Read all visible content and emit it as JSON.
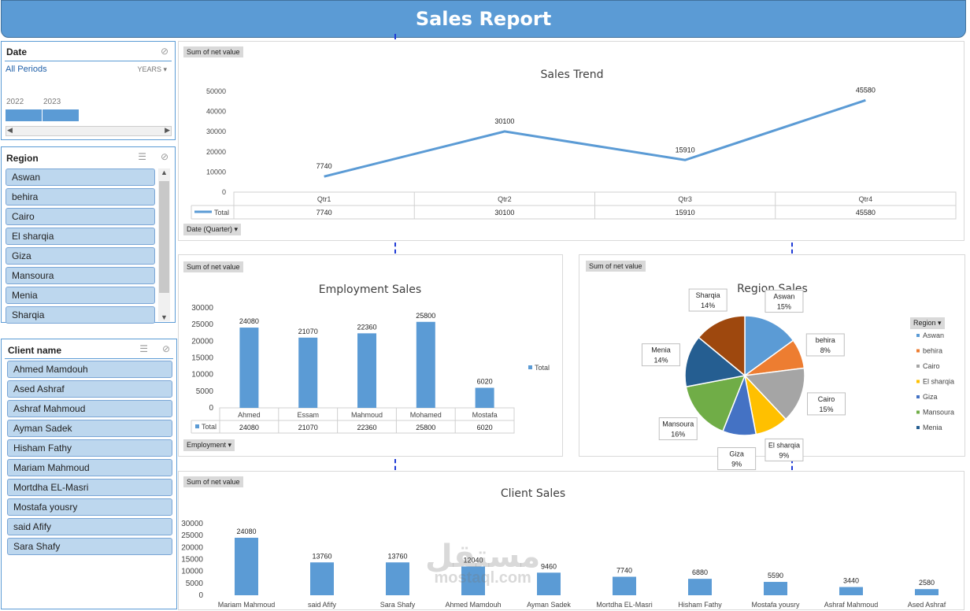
{
  "header": {
    "title": "Sales Report"
  },
  "date_slicer": {
    "title": "Date",
    "period_label": "All Periods",
    "level_label": "YEARS",
    "years": [
      "2022",
      "2023"
    ]
  },
  "region_slicer": {
    "title": "Region",
    "items": [
      "Aswan",
      "behira",
      "Cairo",
      "El sharqia",
      "Giza",
      "Mansoura",
      "Menia",
      "Sharqia"
    ]
  },
  "client_slicer": {
    "title": "Client name",
    "items": [
      "Ahmed Mamdouh",
      "Ased Ashraf",
      "Ashraf Mahmoud",
      "Ayman Sadek",
      "Hisham Fathy",
      "Mariam Mahmoud",
      "Mortdha EL-Masri",
      "Mostafa yousry",
      "said Afify",
      "Sara Shafy"
    ]
  },
  "field_tag": "Sum of net value",
  "trend": {
    "filter_label": "Date (Quarter)"
  },
  "employment": {
    "filter_label": "Employment"
  },
  "region_chart": {
    "filter_label": "Region"
  },
  "watermark": {
    "ar": "مستقل",
    "latin": "mostaql.com"
  },
  "colors": {
    "accent": "#5b9bd5",
    "slicer_item": "#bdd7ee"
  },
  "chart_data": [
    {
      "type": "line",
      "title": "Sales Trend",
      "categories": [
        "Qtr1",
        "Qtr2",
        "Qtr3",
        "Qtr4"
      ],
      "series": [
        {
          "name": "Total",
          "values": [
            7740,
            30100,
            15910,
            45580
          ]
        }
      ],
      "yticks": [
        0,
        10000,
        20000,
        30000,
        40000,
        50000
      ],
      "ylim": [
        0,
        50000
      ],
      "table": true
    },
    {
      "type": "bar",
      "title": "Employment Sales",
      "categories": [
        "Ahmed",
        "Essam",
        "Mahmoud",
        "Mohamed",
        "Mostafa"
      ],
      "series": [
        {
          "name": "Total",
          "values": [
            24080,
            21070,
            22360,
            25800,
            6020
          ]
        }
      ],
      "yticks": [
        0,
        5000,
        10000,
        15000,
        20000,
        25000,
        30000
      ],
      "ylim": [
        0,
        30000
      ],
      "legend": "right",
      "table": true
    },
    {
      "type": "pie",
      "title": "Region Sales",
      "categories": [
        "Aswan",
        "behira",
        "Cairo",
        "El sharqia",
        "Giza",
        "Mansoura",
        "Menia",
        "Sharqia"
      ],
      "values": [
        15,
        8,
        15,
        9,
        9,
        16,
        14,
        14
      ],
      "labels": [
        "15%",
        "8%",
        "15%",
        "9%",
        "9%",
        "16%",
        "14%",
        "14%"
      ],
      "colors": [
        "#5b9bd5",
        "#ed7d31",
        "#a5a5a5",
        "#ffc000",
        "#4472c4",
        "#70ad47",
        "#255e91",
        "#9e480e"
      ],
      "legend": "right",
      "legend_items": [
        "Aswan",
        "behira",
        "Cairo",
        "El sharqia",
        "Giza",
        "Mansoura",
        "Menia"
      ]
    },
    {
      "type": "bar",
      "title": "Client Sales",
      "categories": [
        "Mariam Mahmoud",
        "said Afify",
        "Sara Shafy",
        "Ahmed Mamdouh",
        "Ayman Sadek",
        "Mortdha EL-Masri",
        "Hisham Fathy",
        "Mostafa yousry",
        "Ashraf Mahmoud",
        "Ased Ashraf"
      ],
      "series": [
        {
          "name": "Total",
          "values": [
            24080,
            13760,
            13760,
            12040,
            9460,
            7740,
            6880,
            5590,
            3440,
            2580
          ]
        }
      ],
      "yticks": [
        0,
        5000,
        10000,
        15000,
        20000,
        25000,
        30000
      ],
      "ylim": [
        0,
        30000
      ]
    }
  ]
}
